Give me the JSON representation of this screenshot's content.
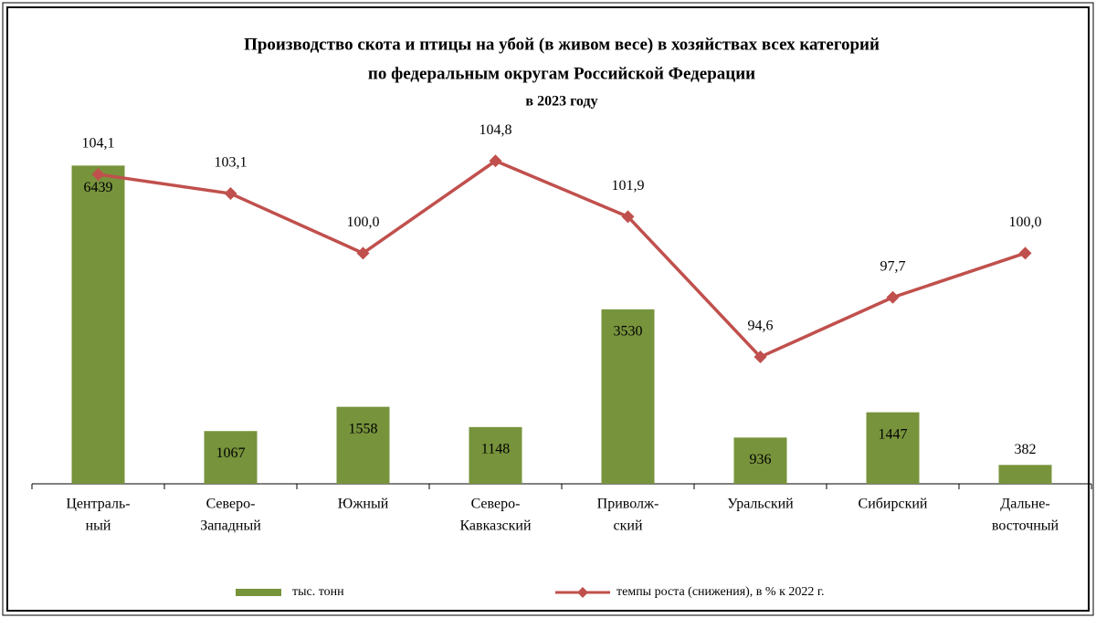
{
  "chart_data": {
    "type": "bar-line",
    "title": [
      "Производство  скота  и птицы  на убой  (в живом весе) в хозяйствах  всех категорий",
      "по федеральным  округам  Российской  Федерации"
    ],
    "subtitle": "в 2023  году",
    "categories": [
      [
        "Централь-",
        "ный"
      ],
      [
        "Северо-",
        "Западный"
      ],
      [
        "Южный"
      ],
      [
        "Северо-",
        "Кавказский"
      ],
      [
        "Приволж-",
        "ский"
      ],
      [
        "Уральский"
      ],
      [
        "Сибирский"
      ],
      [
        "Дальне-",
        "восточный"
      ]
    ],
    "series": [
      {
        "name": "тыс. тонн",
        "type": "bar",
        "color": "#77933c",
        "values": [
          6439,
          1067,
          1558,
          1148,
          3530,
          936,
          1447,
          382
        ]
      },
      {
        "name": "темпы роста (снижения), в % к 2022 г.",
        "type": "line",
        "axis": "y2",
        "color": "#c0504d",
        "values": [
          104.1,
          103.1,
          100.0,
          104.8,
          101.9,
          94.6,
          97.7,
          100.0
        ],
        "value_labels": [
          "104,1",
          "103,1",
          "100,0",
          "104,8",
          "101,9",
          "94,6",
          "97,7",
          "100,0"
        ]
      }
    ],
    "ylim": [
      0,
      7000
    ],
    "y2lim": [
      88,
      106
    ]
  }
}
